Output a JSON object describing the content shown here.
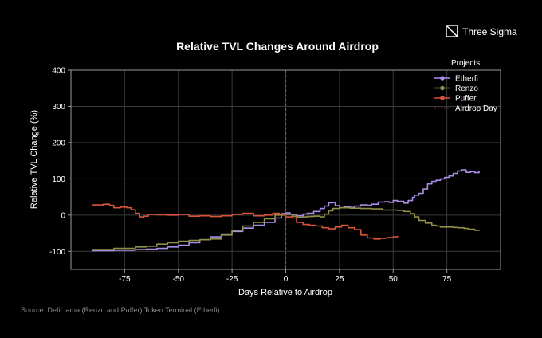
{
  "brand": {
    "name": "Three Sigma",
    "logo_icon": "three-sigma-logo-icon"
  },
  "source_note": "Source: DefiLlama (Renzo and Puffer) Token Terminal (Etherfi)",
  "chart_data": {
    "type": "line",
    "title": "Relative TVL Changes Around Airdrop",
    "xlabel": "Days Relative to Airdrop",
    "ylabel": "Relative TVL Change (%)",
    "xlim": [
      -100,
      100
    ],
    "ylim": [
      -150,
      400
    ],
    "xticks": [
      -75,
      -50,
      -25,
      0,
      25,
      50,
      75
    ],
    "yticks": [
      -100,
      0,
      100,
      200,
      300,
      400
    ],
    "grid": true,
    "legend": {
      "title": "Projects",
      "placement": "top-right"
    },
    "colors": {
      "background": "#000000",
      "grid": "#3a3a3a",
      "frame": "#9a9a9a",
      "etherfi": "#a98ee8",
      "renzo": "#8f8f4a",
      "puffer": "#d9533a",
      "airdrop": "#d23a2f"
    },
    "airdrop_day": {
      "name": "Airdrop Day",
      "x": 0
    },
    "series": [
      {
        "name": "Etherfi",
        "color": "#a98ee8",
        "marker": true,
        "points": [
          [
            -90,
            -98
          ],
          [
            -80,
            -97
          ],
          [
            -70,
            -95
          ],
          [
            -65,
            -94
          ],
          [
            -60,
            -92
          ],
          [
            -55,
            -88
          ],
          [
            -50,
            -83
          ],
          [
            -45,
            -76
          ],
          [
            -40,
            -68
          ],
          [
            -35,
            -60
          ],
          [
            -30,
            -52
          ],
          [
            -25,
            -45
          ],
          [
            -20,
            -36
          ],
          [
            -15,
            -28
          ],
          [
            -10,
            -20
          ],
          [
            -5,
            -8
          ],
          [
            -2,
            4
          ],
          [
            0,
            6
          ],
          [
            2,
            2
          ],
          [
            5,
            -2
          ],
          [
            8,
            3
          ],
          [
            10,
            5
          ],
          [
            13,
            10
          ],
          [
            16,
            18
          ],
          [
            18,
            25
          ],
          [
            20,
            34
          ],
          [
            22,
            35
          ],
          [
            23,
            26
          ],
          [
            25,
            20
          ],
          [
            27,
            22
          ],
          [
            30,
            21
          ],
          [
            32,
            25
          ],
          [
            35,
            28
          ],
          [
            38,
            27
          ],
          [
            40,
            30
          ],
          [
            43,
            36
          ],
          [
            46,
            37
          ],
          [
            48,
            35
          ],
          [
            50,
            40
          ],
          [
            52,
            38
          ],
          [
            55,
            33
          ],
          [
            57,
            40
          ],
          [
            59,
            49
          ],
          [
            60,
            55
          ],
          [
            62,
            60
          ],
          [
            64,
            72
          ],
          [
            66,
            86
          ],
          [
            68,
            93
          ],
          [
            70,
            96
          ],
          [
            72,
            100
          ],
          [
            74,
            104
          ],
          [
            76,
            108
          ],
          [
            78,
            115
          ],
          [
            80,
            122
          ],
          [
            82,
            125
          ],
          [
            84,
            118
          ],
          [
            86,
            120
          ],
          [
            88,
            117
          ],
          [
            90,
            123
          ]
        ]
      },
      {
        "name": "Renzo",
        "color": "#8f8f4a",
        "marker": true,
        "points": [
          [
            -90,
            -95
          ],
          [
            -80,
            -92
          ],
          [
            -70,
            -88
          ],
          [
            -65,
            -86
          ],
          [
            -60,
            -80
          ],
          [
            -55,
            -76
          ],
          [
            -50,
            -72
          ],
          [
            -45,
            -70
          ],
          [
            -40,
            -68
          ],
          [
            -35,
            -66
          ],
          [
            -30,
            -55
          ],
          [
            -25,
            -42
          ],
          [
            -20,
            -30
          ],
          [
            -15,
            -20
          ],
          [
            -10,
            -10
          ],
          [
            -5,
            0
          ],
          [
            0,
            2
          ],
          [
            3,
            -3
          ],
          [
            5,
            -6
          ],
          [
            8,
            -5
          ],
          [
            10,
            -4
          ],
          [
            13,
            -3
          ],
          [
            16,
            -5
          ],
          [
            18,
            3
          ],
          [
            20,
            12
          ],
          [
            22,
            18
          ],
          [
            25,
            20
          ],
          [
            30,
            19
          ],
          [
            35,
            18
          ],
          [
            40,
            17
          ],
          [
            45,
            14
          ],
          [
            50,
            14
          ],
          [
            52,
            13
          ],
          [
            55,
            10
          ],
          [
            58,
            4
          ],
          [
            60,
            -5
          ],
          [
            62,
            -15
          ],
          [
            65,
            -22
          ],
          [
            68,
            -28
          ],
          [
            70,
            -30
          ],
          [
            72,
            -33
          ],
          [
            75,
            -33
          ],
          [
            78,
            -34
          ],
          [
            80,
            -35
          ],
          [
            83,
            -37
          ],
          [
            85,
            -39
          ],
          [
            88,
            -42
          ],
          [
            90,
            -44
          ]
        ]
      },
      {
        "name": "Puffer",
        "color": "#d9533a",
        "marker": true,
        "points": [
          [
            -90,
            28
          ],
          [
            -85,
            30
          ],
          [
            -82,
            27
          ],
          [
            -80,
            20
          ],
          [
            -77,
            22
          ],
          [
            -74,
            20
          ],
          [
            -72,
            15
          ],
          [
            -70,
            5
          ],
          [
            -68,
            -5
          ],
          [
            -66,
            -3
          ],
          [
            -64,
            2
          ],
          [
            -60,
            1
          ],
          [
            -55,
            0
          ],
          [
            -50,
            2
          ],
          [
            -45,
            -3
          ],
          [
            -40,
            -2
          ],
          [
            -35,
            -4
          ],
          [
            -30,
            -2
          ],
          [
            -25,
            2
          ],
          [
            -20,
            5
          ],
          [
            -15,
            -2
          ],
          [
            -10,
            0
          ],
          [
            -6,
            5
          ],
          [
            -3,
            2
          ],
          [
            0,
            -5
          ],
          [
            3,
            -8
          ],
          [
            5,
            -20
          ],
          [
            8,
            -26
          ],
          [
            11,
            -28
          ],
          [
            14,
            -30
          ],
          [
            17,
            -35
          ],
          [
            20,
            -38
          ],
          [
            23,
            -33
          ],
          [
            26,
            -28
          ],
          [
            29,
            -35
          ],
          [
            32,
            -40
          ],
          [
            35,
            -55
          ],
          [
            38,
            -63
          ],
          [
            41,
            -66
          ],
          [
            44,
            -64
          ],
          [
            47,
            -62
          ],
          [
            50,
            -60
          ],
          [
            52,
            -57
          ]
        ]
      }
    ]
  }
}
